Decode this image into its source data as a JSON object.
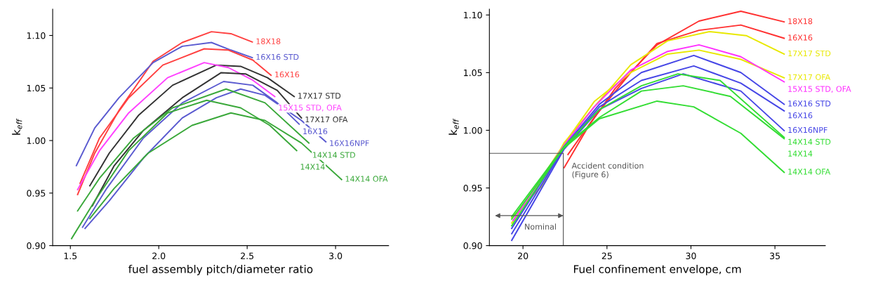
{
  "chart_data": [
    {
      "type": "line",
      "xlabel": "fuel assembly pitch/diameter ratio",
      "ylabel": "k$_{eff}$",
      "xlim": [
        1.4,
        3.3
      ],
      "ylim": [
        0.9,
        1.125
      ],
      "xticks": [
        {
          "value": 1.5,
          "label": "1.5"
        },
        {
          "value": 2.0,
          "label": "2.0"
        },
        {
          "value": 2.5,
          "label": "2.5"
        },
        {
          "value": 3.0,
          "label": "3.0"
        }
      ],
      "yticks": [
        {
          "value": 0.9,
          "label": "0.90"
        },
        {
          "value": 0.95,
          "label": "0.95"
        },
        {
          "value": 1.0,
          "label": "1.00"
        },
        {
          "value": 1.05,
          "label": "1.05"
        },
        {
          "value": 1.1,
          "label": "1.10"
        }
      ],
      "grid": false,
      "legend": false,
      "marker": "none",
      "line_style": "solid",
      "series": [
        {
          "name": "18X18",
          "color": "#ff4040",
          "x": [
            1.541,
            1.638,
            1.775,
            1.968,
            2.133,
            2.298,
            2.408,
            2.529
          ],
          "values": [
            0.9486,
            0.988,
            1.0287,
            1.0754,
            1.0933,
            1.1036,
            1.1017,
            1.0938
          ]
        },
        {
          "name": "16X16 STD",
          "color": "#5a5ad0",
          "x": [
            1.534,
            1.638,
            1.775,
            1.968,
            2.133,
            2.298,
            2.408,
            2.529
          ],
          "values": [
            0.9761,
            1.012,
            1.0407,
            1.0742,
            1.0897,
            1.0933,
            1.0861,
            1.0789
          ]
        },
        {
          "name": "16X16",
          "color": "#ff4040",
          "x": [
            1.555,
            1.665,
            1.83,
            2.023,
            2.257,
            2.394,
            2.532,
            2.635
          ],
          "values": [
            0.9593,
            1.0024,
            1.0407,
            1.0718,
            1.0873,
            1.0861,
            1.0766,
            1.0622
          ]
        },
        {
          "name": "17X17 STD",
          "color": "#333333",
          "x": [
            1.61,
            1.72,
            1.885,
            2.078,
            2.326,
            2.463,
            2.615,
            2.766
          ],
          "values": [
            0.9569,
            0.988,
            1.0239,
            1.0526,
            1.0718,
            1.0706,
            1.0598,
            1.0419
          ]
        },
        {
          "name": "15X15 STD, OFA",
          "color": "#ff40ff",
          "x": [
            1.541,
            1.665,
            1.83,
            2.05,
            2.257,
            2.394,
            2.532,
            2.656
          ],
          "values": [
            0.9533,
            0.9904,
            1.0263,
            1.0598,
            1.0742,
            1.0694,
            1.0574,
            1.0419
          ]
        },
        {
          "name": "17X17 OFA",
          "color": "#333333",
          "x": [
            1.624,
            1.748,
            1.913,
            2.133,
            2.353,
            2.491,
            2.67,
            2.807
          ],
          "values": [
            0.9378,
            0.9761,
            1.0096,
            1.0407,
            1.0646,
            1.0634,
            1.0478,
            1.0215
          ]
        },
        {
          "name": "16X16",
          "color": "#5a5ad0",
          "x": [
            1.569,
            1.706,
            1.913,
            2.133,
            2.367,
            2.532,
            2.67,
            2.794
          ],
          "values": [
            0.9175,
            0.9545,
            1.0024,
            1.0359,
            1.0562,
            1.0526,
            1.0359,
            1.0156
          ]
        },
        {
          "name": "16X16NPF",
          "color": "#5a5ad0",
          "x": [
            1.583,
            1.72,
            1.913,
            2.133,
            2.326,
            2.463,
            2.601,
            2.807,
            2.945
          ],
          "values": [
            0.9163,
            0.9426,
            0.9833,
            1.0215,
            1.0407,
            1.049,
            1.0431,
            1.0191,
            0.9988
          ]
        },
        {
          "name": "14X14 STD",
          "color": "#3aa83a",
          "x": [
            1.541,
            1.665,
            1.858,
            2.078,
            2.381,
            2.601,
            2.849
          ],
          "values": [
            0.933,
            0.9641,
            1.0024,
            1.0311,
            1.049,
            1.0359,
            0.9976
          ]
        },
        {
          "name": "14X14",
          "color": "#3aa83a",
          "x": [
            1.507,
            1.638,
            1.83,
            2.05,
            2.271,
            2.463,
            2.628,
            2.78
          ],
          "values": [
            0.9067,
            0.9426,
            0.9904,
            1.0263,
            1.0383,
            1.0311,
            1.0144,
            0.9904
          ]
        },
        {
          "name": "14X14 OFA",
          "color": "#3aa83a",
          "x": [
            1.61,
            1.748,
            1.94,
            2.188,
            2.408,
            2.601,
            2.807,
            3.034
          ],
          "values": [
            0.9258,
            0.9545,
            0.988,
            1.0144,
            1.0263,
            1.0191,
            0.9976,
            0.9629
          ]
        }
      ]
    },
    {
      "type": "line",
      "xlabel": "Fuel confinement envelope, cm",
      "ylabel": "k$_{eff}$",
      "xlim": [
        18,
        38
      ],
      "ylim": [
        0.9,
        1.105
      ],
      "xticks": [
        20,
        25,
        30,
        35
      ],
      "yticks": [
        {
          "value": 0.9,
          "label": "0.90"
        },
        {
          "value": 0.95,
          "label": "0.95"
        },
        {
          "value": 1.0,
          "label": "1.00"
        },
        {
          "value": 1.05,
          "label": "1.05"
        },
        {
          "value": 1.1,
          "label": "1.10"
        }
      ],
      "grid": false,
      "legend": false,
      "marker": "none",
      "line_style": "solid",
      "ref_lines": [
        {
          "axis": "x",
          "value": 22.4,
          "label": "Accident condition\n(Figure 6)",
          "color": "#555555"
        },
        {
          "axis": "y",
          "value": 0.98,
          "color": "#555555"
        }
      ],
      "annotations": [
        {
          "text": "Nominal",
          "x": 22.4,
          "y": 0.926
        }
      ],
      "series": [
        {
          "name": "18X18",
          "color": "#ff3030",
          "x": [
            22.45,
            23.93,
            25.49,
            27.98,
            30.48,
            32.97,
            35.55
          ],
          "values": [
            0.9676,
            1.0042,
            1.0363,
            1.0741,
            1.0947,
            1.1032,
            1.094
          ]
        },
        {
          "name": "16X16",
          "color": "#ff3030",
          "x": [
            22.68,
            24.24,
            26.42,
            27.98,
            30.48,
            32.97,
            35.55
          ],
          "values": [
            0.979,
            1.0111,
            1.0501,
            1.0753,
            1.0867,
            1.0913,
            1.0798
          ]
        },
        {
          "name": "17X17 STD",
          "color": "#e8e800",
          "x": [
            19.33,
            21.12,
            22.45,
            24.24,
            26.42,
            28.61,
            31.1,
            33.29,
            35.55
          ],
          "values": [
            0.9241,
            0.9515,
            0.9893,
            1.0203,
            1.0569,
            1.0776,
            1.0856,
            1.0821,
            1.0661
          ]
        },
        {
          "name": "17X17 OFA",
          "color": "#e8e800",
          "x": [
            19.33,
            22.45,
            24.24,
            26.42,
            28.61,
            30.48,
            32.97,
            35.55
          ],
          "values": [
            0.9195,
            0.9882,
            1.0249,
            1.0501,
            1.0661,
            1.0695,
            1.0615,
            1.0455
          ]
        },
        {
          "name": "15X15 STD, OFA",
          "color": "#ff30ff",
          "x": [
            19.41,
            22.45,
            24.24,
            26.42,
            28.61,
            30.48,
            32.97,
            35.55
          ],
          "values": [
            0.9218,
            0.9871,
            1.0203,
            1.0523,
            1.0684,
            1.0741,
            1.0638,
            1.042
          ]
        },
        {
          "name": "16X16 STD",
          "color": "#4646e6",
          "x": [
            19.33,
            22.45,
            24.55,
            27.05,
            30.17,
            32.97,
            35.55
          ],
          "values": [
            0.9149,
            0.9859,
            1.0226,
            1.0501,
            1.0649,
            1.0501,
            1.0226
          ]
        },
        {
          "name": "16X16",
          "color": "#4646e6",
          "x": [
            19.33,
            22.45,
            24.55,
            27.05,
            30.17,
            32.97,
            35.55
          ],
          "values": [
            0.9103,
            0.9848,
            1.0203,
            1.0432,
            1.0558,
            1.0409,
            1.0168
          ]
        },
        {
          "name": "16X16NPF",
          "color": "#4646e6",
          "x": [
            19.33,
            22.45,
            24.55,
            27.05,
            29.54,
            32.97,
            35.55
          ],
          "values": [
            0.9046,
            0.9836,
            1.018,
            1.0363,
            1.0489,
            1.034,
            0.9997
          ]
        },
        {
          "name": "14X14 STD",
          "color": "#33dd33",
          "x": [
            19.33,
            22.45,
            24.55,
            27.05,
            29.23,
            31.73,
            35.55
          ],
          "values": [
            0.9252,
            0.9859,
            1.018,
            1.0386,
            1.0489,
            1.0432,
            0.9939
          ]
        },
        {
          "name": "14X14",
          "color": "#33dd33",
          "x": [
            19.33,
            22.45,
            24.55,
            27.05,
            29.54,
            32.35,
            35.55
          ],
          "values": [
            0.9172,
            0.9859,
            1.0111,
            1.034,
            1.0386,
            1.0294,
            0.9928
          ]
        },
        {
          "name": "14X14 OFA",
          "color": "#33dd33",
          "x": [
            19.33,
            22.45,
            24.55,
            27.98,
            30.17,
            32.97,
            35.55
          ],
          "values": [
            0.9229,
            0.9848,
            1.01,
            1.0253,
            1.0203,
            0.9974,
            0.9635
          ]
        }
      ]
    }
  ]
}
